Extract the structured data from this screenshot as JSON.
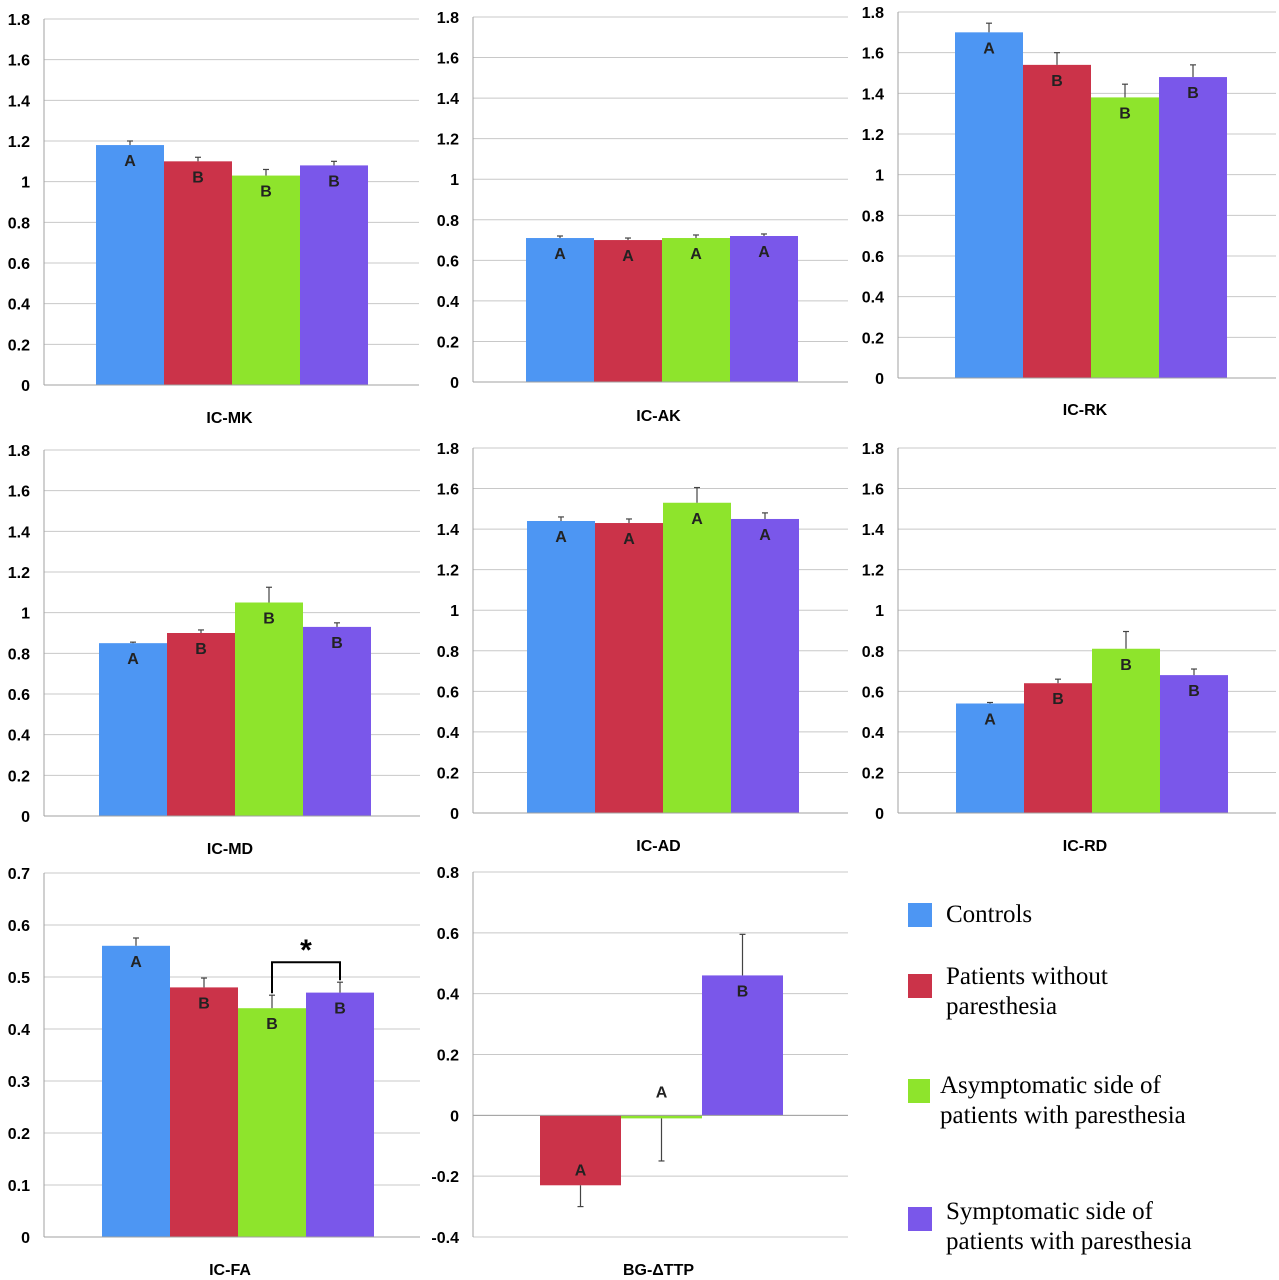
{
  "colors": {
    "controls": "#4d96f3",
    "without": "#cb3349",
    "asymptomatic": "#8ee42c",
    "symptomatic": "#7a57ea",
    "grid": "#c8c8c8",
    "axis": "#a0a0a0",
    "errorbar": "#444444"
  },
  "legend": [
    {
      "key": "controls",
      "label": "Controls"
    },
    {
      "key": "without",
      "label": "Patients without paresthesia"
    },
    {
      "key": "asymptomatic",
      "label": "Asymptomatic side of patients with paresthesia"
    },
    {
      "key": "symptomatic",
      "label": "Symptomatic side of patients with paresthesia"
    }
  ],
  "chart_data": [
    {
      "type": "bar",
      "title": "IC-MK",
      "ylim": [
        0,
        1.8
      ],
      "ticks": [
        "0",
        "0.2",
        "0.4",
        "0.6",
        "0.8",
        "1",
        "1.2",
        "1.4",
        "1.6",
        "1.8"
      ],
      "grid": true,
      "series": [
        {
          "key": "controls",
          "value": 1.18,
          "error": 0.02,
          "letter": "A"
        },
        {
          "key": "without",
          "value": 1.1,
          "error": 0.02,
          "letter": "B"
        },
        {
          "key": "asymptomatic",
          "value": 1.03,
          "error": 0.03,
          "letter": "B"
        },
        {
          "key": "symptomatic",
          "value": 1.08,
          "error": 0.02,
          "letter": "B"
        }
      ]
    },
    {
      "type": "bar",
      "title": "IC-AK",
      "ylim": [
        0,
        1.8
      ],
      "ticks": [
        "0",
        "0.2",
        "0.4",
        "0.6",
        "0.8",
        "1",
        "1.2",
        "1.4",
        "1.6",
        "1.8"
      ],
      "grid": true,
      "series": [
        {
          "key": "controls",
          "value": 0.71,
          "error": 0.01,
          "letter": "A"
        },
        {
          "key": "without",
          "value": 0.7,
          "error": 0.01,
          "letter": "A"
        },
        {
          "key": "asymptomatic",
          "value": 0.71,
          "error": 0.015,
          "letter": "A"
        },
        {
          "key": "symptomatic",
          "value": 0.72,
          "error": 0.01,
          "letter": "A"
        }
      ]
    },
    {
      "type": "bar",
      "title": "IC-RK",
      "ylim": [
        0,
        1.8
      ],
      "ticks": [
        "0",
        "0.2",
        "0.4",
        "0.6",
        "0.8",
        "1",
        "1.2",
        "1.4",
        "1.6",
        "1.8"
      ],
      "grid": true,
      "series": [
        {
          "key": "controls",
          "value": 1.7,
          "error": 0.045,
          "letter": "A"
        },
        {
          "key": "without",
          "value": 1.54,
          "error": 0.06,
          "letter": "B"
        },
        {
          "key": "asymptomatic",
          "value": 1.38,
          "error": 0.065,
          "letter": "B"
        },
        {
          "key": "symptomatic",
          "value": 1.48,
          "error": 0.06,
          "letter": "B"
        }
      ]
    },
    {
      "type": "bar",
      "title": "IC-MD",
      "ylim": [
        0,
        1.8
      ],
      "ticks": [
        "0",
        "0.2",
        "0.4",
        "0.6",
        "0.8",
        "1",
        "1.2",
        "1.4",
        "1.6",
        "1.8"
      ],
      "grid": true,
      "series": [
        {
          "key": "controls",
          "value": 0.85,
          "error": 0.005,
          "letter": "A"
        },
        {
          "key": "without",
          "value": 0.9,
          "error": 0.015,
          "letter": "B"
        },
        {
          "key": "asymptomatic",
          "value": 1.05,
          "error": 0.075,
          "letter": "B"
        },
        {
          "key": "symptomatic",
          "value": 0.93,
          "error": 0.02,
          "letter": "B"
        }
      ]
    },
    {
      "type": "bar",
      "title": "IC-AD",
      "ylim": [
        0,
        1.8
      ],
      "ticks": [
        "0",
        "0.2",
        "0.4",
        "0.6",
        "0.8",
        "1",
        "1.2",
        "1.4",
        "1.6",
        "1.8"
      ],
      "grid": true,
      "series": [
        {
          "key": "controls",
          "value": 1.44,
          "error": 0.02,
          "letter": "A"
        },
        {
          "key": "without",
          "value": 1.43,
          "error": 0.02,
          "letter": "A"
        },
        {
          "key": "asymptomatic",
          "value": 1.53,
          "error": 0.075,
          "letter": "A"
        },
        {
          "key": "symptomatic",
          "value": 1.45,
          "error": 0.03,
          "letter": "A"
        }
      ]
    },
    {
      "type": "bar",
      "title": "IC-RD",
      "ylim": [
        0,
        1.8
      ],
      "ticks": [
        "0",
        "0.2",
        "0.4",
        "0.6",
        "0.8",
        "1",
        "1.2",
        "1.4",
        "1.6",
        "1.8"
      ],
      "grid": true,
      "series": [
        {
          "key": "controls",
          "value": 0.54,
          "error": 0.005,
          "letter": "A"
        },
        {
          "key": "without",
          "value": 0.64,
          "error": 0.02,
          "letter": "B"
        },
        {
          "key": "asymptomatic",
          "value": 0.81,
          "error": 0.085,
          "letter": "B"
        },
        {
          "key": "symptomatic",
          "value": 0.68,
          "error": 0.03,
          "letter": "B"
        }
      ]
    },
    {
      "type": "bar",
      "title": "IC-FA",
      "ylim": [
        0,
        0.7
      ],
      "ticks": [
        "0",
        "0.1",
        "0.2",
        "0.3",
        "0.4",
        "0.5",
        "0.6",
        "0.7"
      ],
      "grid": true,
      "series": [
        {
          "key": "controls",
          "value": 0.56,
          "error": 0.015,
          "letter": "A"
        },
        {
          "key": "without",
          "value": 0.48,
          "error": 0.018,
          "letter": "B"
        },
        {
          "key": "asymptomatic",
          "value": 0.44,
          "error": 0.025,
          "letter": "B"
        },
        {
          "key": "symptomatic",
          "value": 0.47,
          "error": 0.02,
          "letter": "B"
        }
      ],
      "significance": {
        "label": "*",
        "between": [
          "asymptomatic",
          "symptomatic"
        ]
      }
    },
    {
      "type": "bar",
      "title": "BG-ΔTTP",
      "ylim": [
        -0.4,
        0.8
      ],
      "ticks": [
        "-0.4",
        "-0.2",
        "0",
        "0.2",
        "0.4",
        "0.6",
        "0.8"
      ],
      "grid": true,
      "series": [
        {
          "key": "without",
          "value": -0.23,
          "error": 0.07,
          "letter": "A"
        },
        {
          "key": "asymptomatic",
          "value": -0.01,
          "error": 0.14,
          "letter": "A"
        },
        {
          "key": "symptomatic",
          "value": 0.46,
          "error": 0.135,
          "letter": "B"
        }
      ]
    }
  ]
}
